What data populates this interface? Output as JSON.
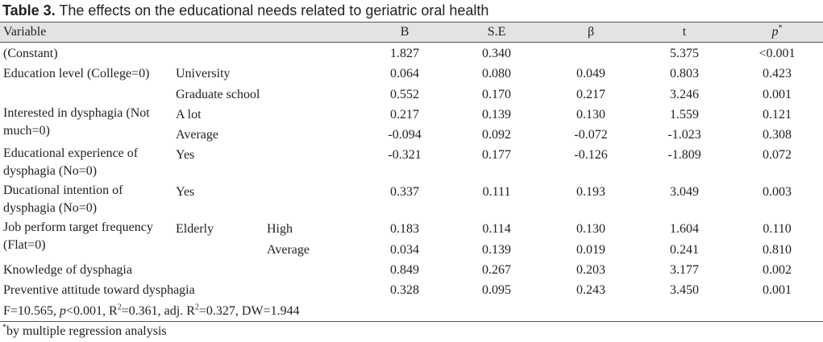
{
  "caption": {
    "label": "Table 3.",
    "text": "The effects on the educational needs related to geriatric oral health"
  },
  "columns": {
    "variable": "Variable",
    "b": "B",
    "se": "S.E",
    "beta": "β",
    "t": "t",
    "p": "p",
    "p_mark": "*"
  },
  "rows": {
    "constant": {
      "label": "(Constant)",
      "b": "1.827",
      "se": "0.340",
      "beta": "",
      "t": "5.375",
      "p": "<0.001"
    },
    "edu_label": "Education level (College=0)",
    "edu_univ": {
      "sub": "University",
      "b": "0.064",
      "se": "0.080",
      "beta": "0.049",
      "t": "0.803",
      "p": "0.423"
    },
    "edu_grad": {
      "sub": "Graduate school",
      "b": "0.552",
      "se": "0.170",
      "beta": "0.217",
      "t": "3.246",
      "p": "0.001"
    },
    "interest_label": "Interested in dysphagia (Not much=0)",
    "interest_alot": {
      "sub": "A lot",
      "b": "0.217",
      "se": "0.139",
      "beta": "0.130",
      "t": "1.559",
      "p": "0.121"
    },
    "interest_avg": {
      "sub": "Average",
      "b": "-0.094",
      "se": "0.092",
      "beta": "-0.072",
      "t": "-1.023",
      "p": "0.308"
    },
    "exp_label": "Educational experience of dysphagia (No=0)",
    "exp_yes": {
      "sub": "Yes",
      "b": "-0.321",
      "se": "0.177",
      "beta": "-0.126",
      "t": "-1.809",
      "p": "0.072"
    },
    "intent_label": "Ducational intention of dysphagia (No=0)",
    "intent_yes": {
      "sub": "Yes",
      "b": "0.337",
      "se": "0.111",
      "beta": "0.193",
      "t": "3.049",
      "p": "0.003"
    },
    "job_label": "Job perform target frequency (Flat=0)",
    "job_sub": "Elderly",
    "job_high": {
      "sub2": "High",
      "b": "0.183",
      "se": "0.114",
      "beta": "0.130",
      "t": "1.604",
      "p": "0.110"
    },
    "job_avg": {
      "sub2": "Average",
      "b": "0.034",
      "se": "0.139",
      "beta": "0.019",
      "t": "0.241",
      "p": "0.810"
    },
    "knowledge": {
      "label": "Knowledge of dysphagia",
      "b": "0.849",
      "se": "0.267",
      "beta": "0.203",
      "t": "3.177",
      "p": "0.002"
    },
    "attitude": {
      "label": "Preventive attitude toward dysphagia",
      "b": "0.328",
      "se": "0.095",
      "beta": "0.243",
      "t": "3.450",
      "p": "0.001"
    }
  },
  "stats": {
    "f": "F=10.565, ",
    "p_sym": "p",
    "p_val": "<0.001, R",
    "r2_exp": "2",
    "r2_val": "=0.361, adj. R",
    "adj_exp": "2",
    "adj_val": "=0.327, DW=1.944"
  },
  "footnote": {
    "mark": "*",
    "text": "by multiple regression analysis"
  }
}
